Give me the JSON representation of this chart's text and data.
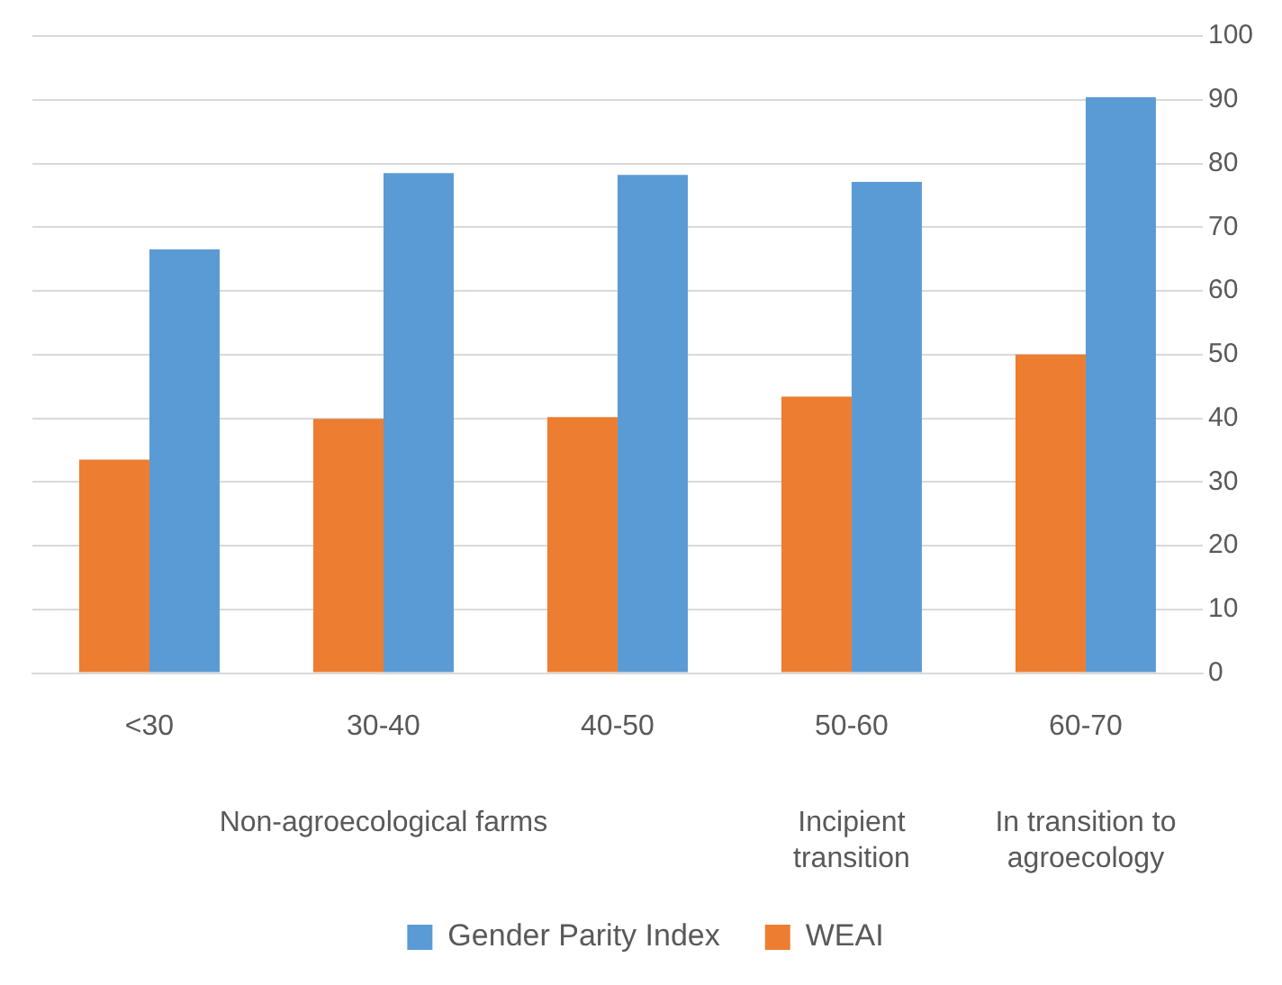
{
  "chart_data": {
    "type": "bar",
    "categories": [
      "<30",
      "30-40",
      "40-50",
      "50-60",
      "60-70"
    ],
    "series": [
      {
        "name": "WEAI",
        "color": "#ed7d31",
        "values": [
          33.5,
          39.9,
          40.2,
          43.4,
          50
        ]
      },
      {
        "name": "Gender Parity Index",
        "color": "#5b9bd5",
        "values": [
          66.5,
          78.5,
          78.2,
          77.1,
          90.4
        ]
      }
    ],
    "ylim": [
      0,
      100
    ],
    "yticks": [
      0,
      10,
      20,
      30,
      40,
      50,
      60,
      70,
      80,
      90,
      100
    ],
    "grid": "y",
    "legend": "bottom",
    "annotations": [
      "Non-agroecological farms",
      "Incipient transition",
      "In transition to agroecology"
    ]
  }
}
